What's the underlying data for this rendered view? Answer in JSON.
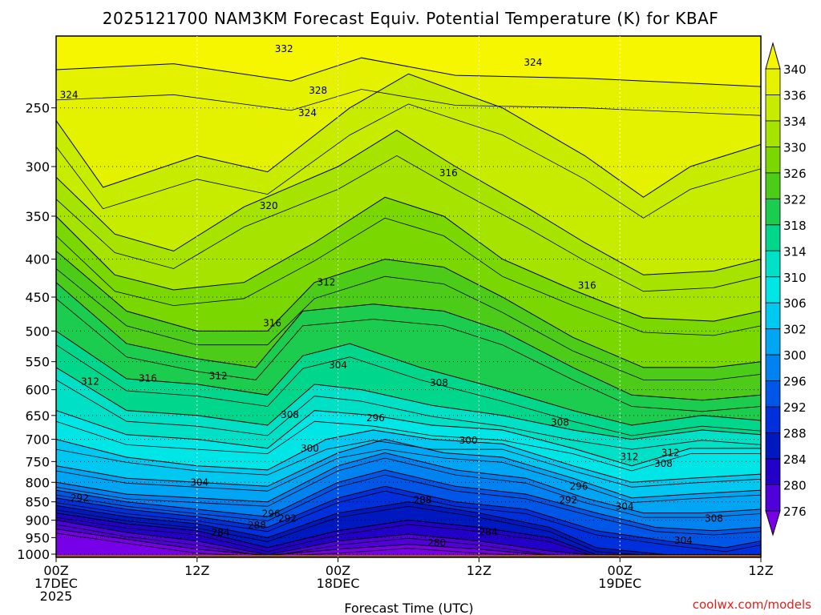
{
  "chart_data": {
    "type": "heatmap",
    "title": "2025121700 NAM3KM Forecast Equiv. Potential Temperature (K) for KBAF",
    "xlabel": "Forecast Time (UTC)",
    "ylabel": "",
    "credit": "coolwx.com/models",
    "x_ticks": [
      {
        "hour": 0,
        "line1": "00Z",
        "line2": "17DEC",
        "line3": "2025"
      },
      {
        "hour": 12,
        "line1": "12Z",
        "line2": "",
        "line3": ""
      },
      {
        "hour": 24,
        "line1": "00Z",
        "line2": "18DEC",
        "line3": ""
      },
      {
        "hour": 36,
        "line1": "12Z",
        "line2": "",
        "line3": ""
      },
      {
        "hour": 48,
        "line1": "00Z",
        "line2": "19DEC",
        "line3": ""
      },
      {
        "hour": 60,
        "line1": "12Z",
        "line2": "",
        "line3": ""
      }
    ],
    "xlim": [
      0,
      60
    ],
    "y_ticks": [
      250,
      300,
      350,
      400,
      450,
      500,
      550,
      600,
      650,
      700,
      750,
      800,
      850,
      900,
      950,
      1000
    ],
    "ylim_hpa": [
      200,
      1010
    ],
    "ground_hpa": 1000,
    "colorbar": {
      "labels": [
        340,
        336,
        334,
        330,
        326,
        322,
        318,
        314,
        310,
        306,
        302,
        300,
        296,
        292,
        288,
        284,
        280,
        276
      ],
      "colors": [
        "#f6f600",
        "#e4f200",
        "#c8ec00",
        "#a6e400",
        "#7ad800",
        "#4ccc18",
        "#1ccc4e",
        "#00d68c",
        "#00e0c6",
        "#00e6e6",
        "#00c8f0",
        "#00a6f4",
        "#0082f0",
        "#0056e6",
        "#0030dc",
        "#0018c0",
        "#2200c8",
        "#5000d8",
        "#7800e8"
      ]
    },
    "contour_labels": [
      {
        "text": "332",
        "hour": 19.4,
        "hpa": 208
      },
      {
        "text": "324",
        "hour": 40.6,
        "hpa": 217
      },
      {
        "text": "324",
        "hour": 1.1,
        "hpa": 240
      },
      {
        "text": "328",
        "hour": 22.3,
        "hpa": 237
      },
      {
        "text": "324",
        "hour": 21.4,
        "hpa": 254
      },
      {
        "text": "316",
        "hour": 33.4,
        "hpa": 306
      },
      {
        "text": "320",
        "hour": 18.1,
        "hpa": 339
      },
      {
        "text": "312",
        "hour": 23.0,
        "hpa": 430
      },
      {
        "text": "316",
        "hour": 45.2,
        "hpa": 434
      },
      {
        "text": "316",
        "hour": 18.4,
        "hpa": 488
      },
      {
        "text": "304",
        "hour": 24.0,
        "hpa": 556
      },
      {
        "text": "312",
        "hour": 2.9,
        "hpa": 585
      },
      {
        "text": "316",
        "hour": 7.8,
        "hpa": 579
      },
      {
        "text": "312",
        "hour": 13.8,
        "hpa": 575
      },
      {
        "text": "308",
        "hour": 32.6,
        "hpa": 587
      },
      {
        "text": "308",
        "hour": 19.9,
        "hpa": 649
      },
      {
        "text": "296",
        "hour": 27.2,
        "hpa": 655
      },
      {
        "text": "308",
        "hour": 42.9,
        "hpa": 664
      },
      {
        "text": "300",
        "hour": 35.1,
        "hpa": 702
      },
      {
        "text": "300",
        "hour": 21.6,
        "hpa": 720
      },
      {
        "text": "312",
        "hour": 48.8,
        "hpa": 739
      },
      {
        "text": "312",
        "hour": 52.3,
        "hpa": 730
      },
      {
        "text": "308",
        "hour": 51.7,
        "hpa": 755
      },
      {
        "text": "304",
        "hour": 12.2,
        "hpa": 800
      },
      {
        "text": "296",
        "hour": 44.5,
        "hpa": 810
      },
      {
        "text": "292",
        "hour": 2.0,
        "hpa": 840
      },
      {
        "text": "288",
        "hour": 31.2,
        "hpa": 845
      },
      {
        "text": "292",
        "hour": 43.6,
        "hpa": 845
      },
      {
        "text": "304",
        "hour": 48.4,
        "hpa": 862
      },
      {
        "text": "296",
        "hour": 18.3,
        "hpa": 882
      },
      {
        "text": "292",
        "hour": 19.7,
        "hpa": 895
      },
      {
        "text": "288",
        "hour": 17.1,
        "hpa": 914
      },
      {
        "text": "308",
        "hour": 56.0,
        "hpa": 895
      },
      {
        "text": "284",
        "hour": 14.0,
        "hpa": 935
      },
      {
        "text": "284",
        "hour": 36.8,
        "hpa": 934
      },
      {
        "text": "304",
        "hour": 53.4,
        "hpa": 958
      },
      {
        "text": "280",
        "hour": 32.4,
        "hpa": 966
      }
    ]
  }
}
